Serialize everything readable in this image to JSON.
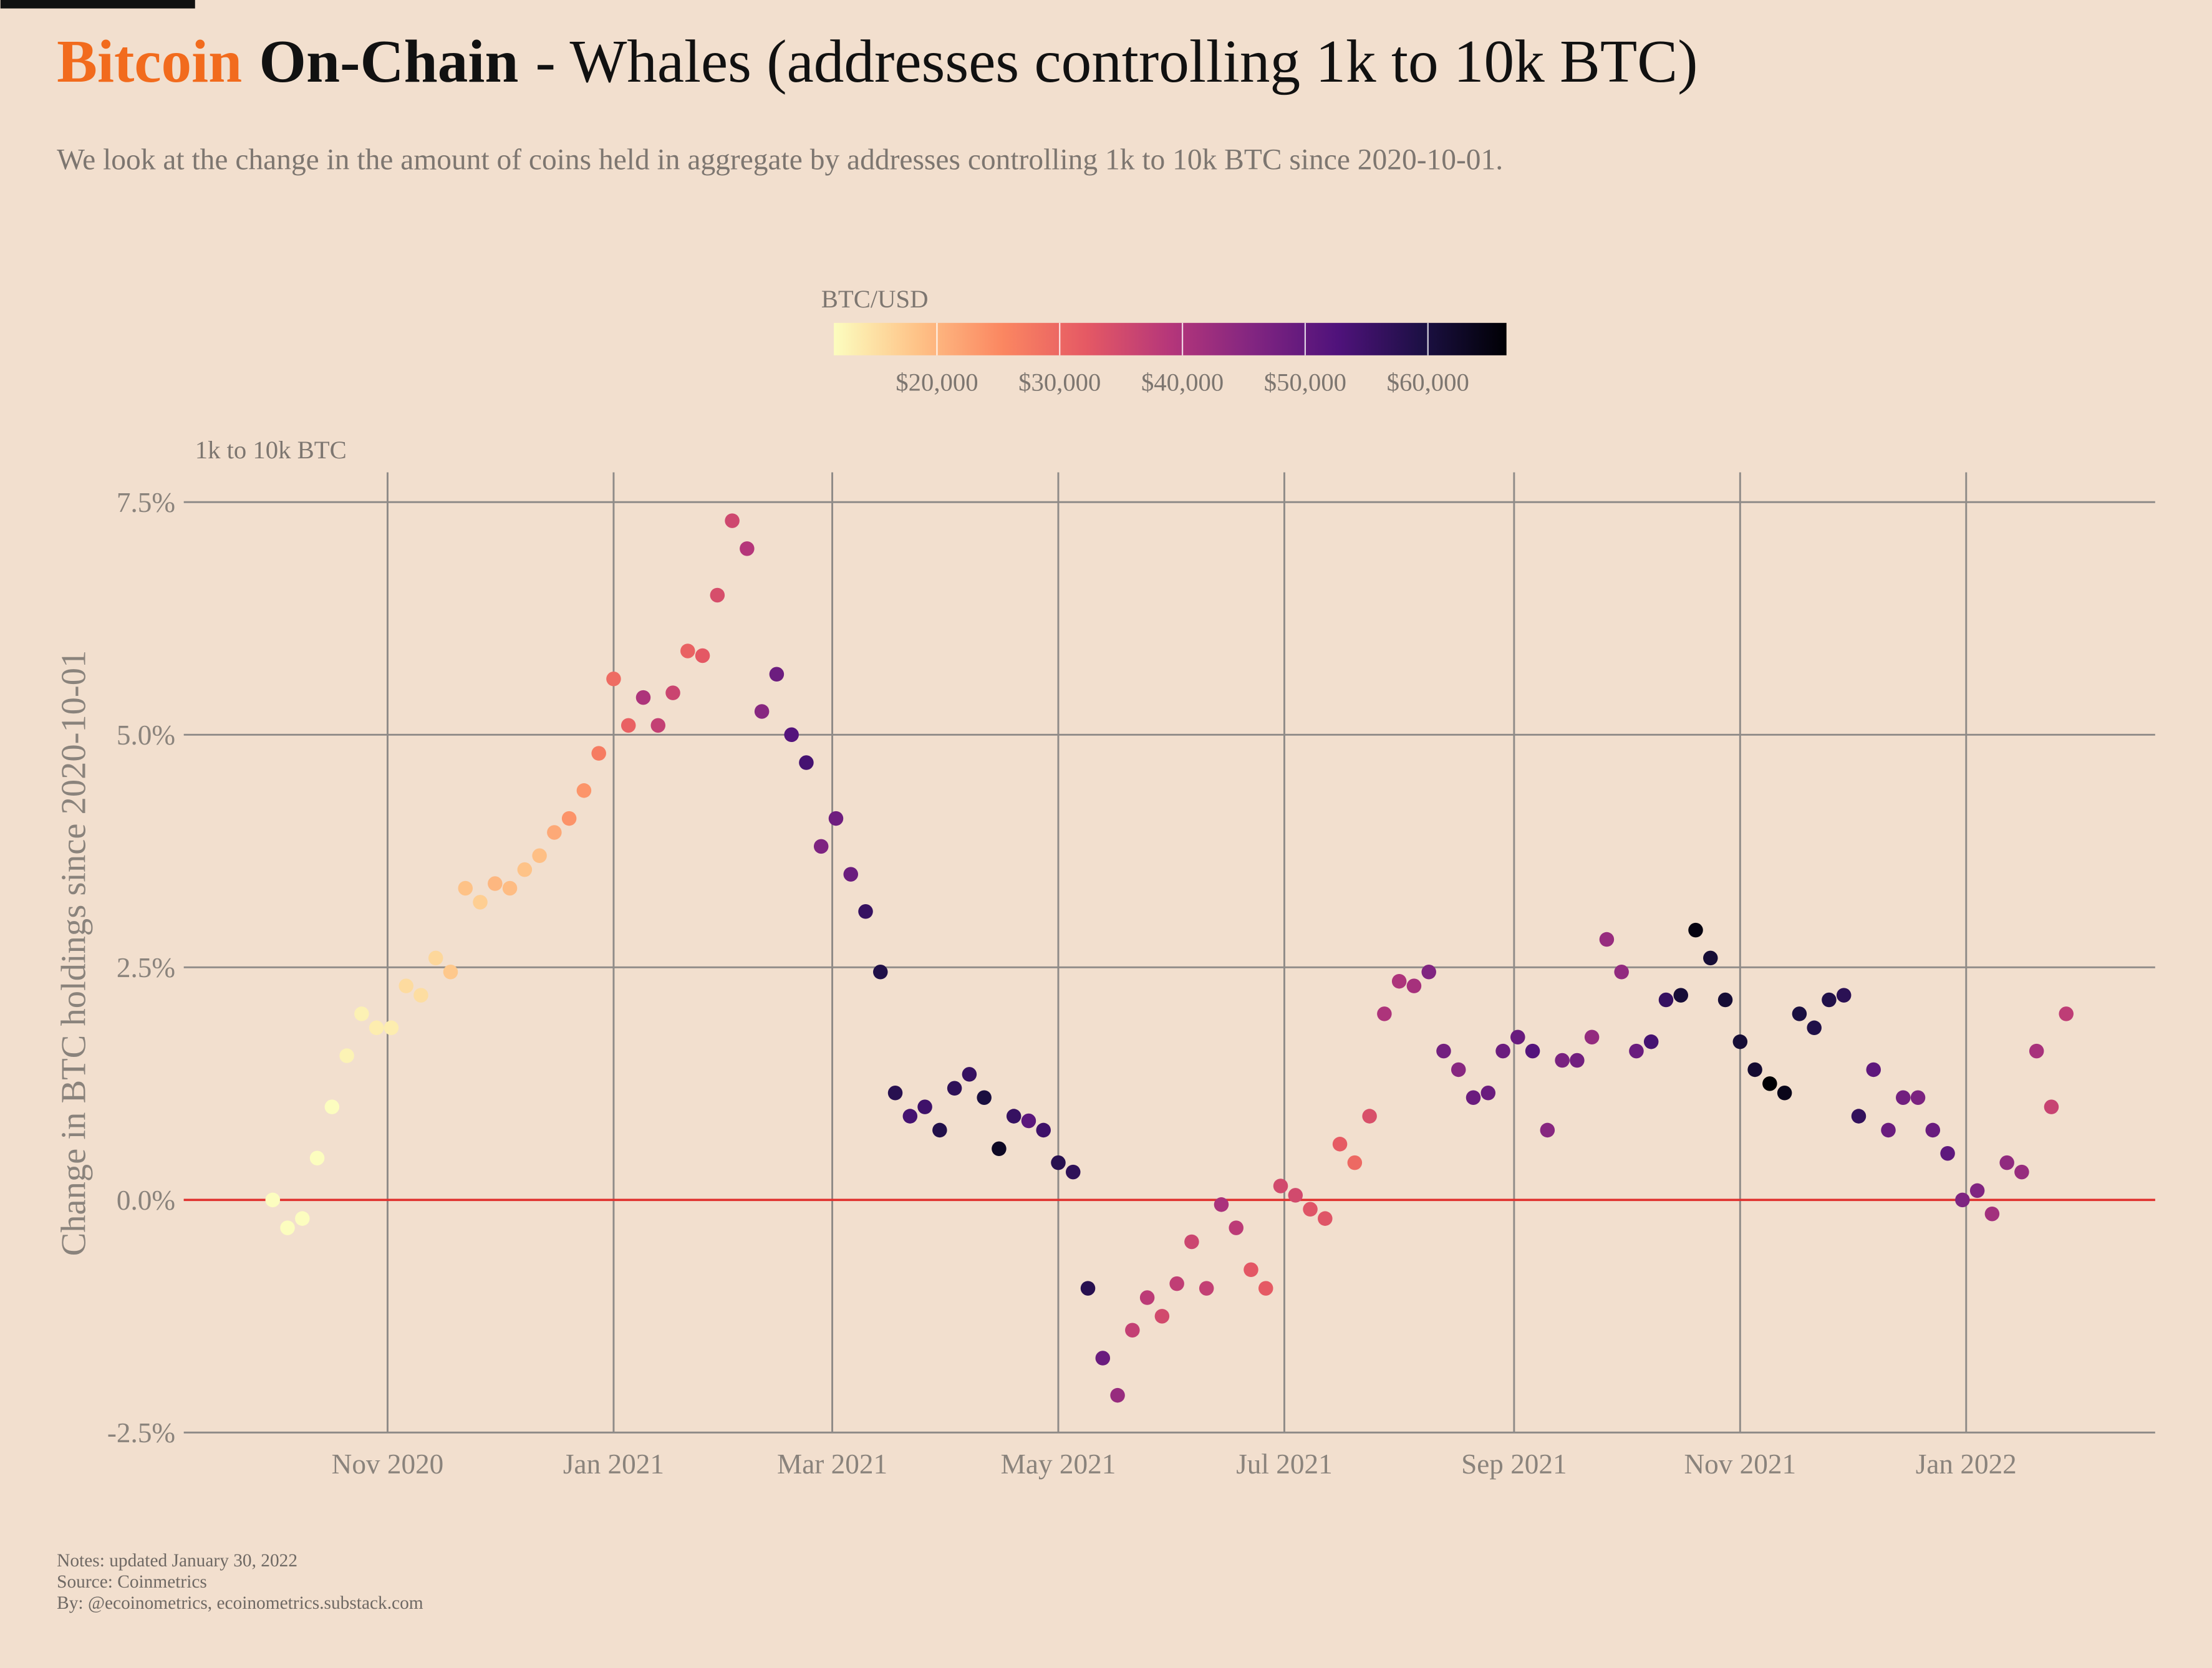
{
  "chart_data": {
    "type": "scatter",
    "title": {
      "brand": "Bitcoin",
      "section": "On-Chain",
      "text": "- Whales (addresses controlling 1k to 10k BTC)"
    },
    "subtitle": "We look at the change in the amount of coins held in aggregate by addresses controlling 1k to 10k BTC since 2020-10-01.",
    "y_unit_label": "1k to 10k BTC",
    "ylabel": "Change in BTC holdings since 2020-10-01",
    "notes": [
      "Notes: updated January 30, 2022",
      "Source: Coinmetrics",
      "By: @ecoinometrics, ecoinometrics.substack.com"
    ],
    "colorbar": {
      "title": "BTC/USD",
      "lim": [
        11600,
        66400
      ],
      "colormap": [
        "#fcfdbf",
        "#fec287",
        "#fb8761",
        "#e55964",
        "#b5367a",
        "#812581",
        "#4f127b",
        "#1c1044",
        "#000004"
      ],
      "ticks": [
        {
          "value": 20000,
          "label": "$20,000"
        },
        {
          "value": 30000,
          "label": "$30,000"
        },
        {
          "value": 40000,
          "label": "$40,000"
        },
        {
          "value": 50000,
          "label": "$50,000"
        },
        {
          "value": 60000,
          "label": "$60,000"
        }
      ]
    },
    "xlim": [
      "2020-09-07",
      "2022-02-21"
    ],
    "xticks": [
      {
        "value": "2020-11-01",
        "label": "Nov 2020"
      },
      {
        "value": "2021-01-01",
        "label": "Jan 2021"
      },
      {
        "value": "2021-03-01",
        "label": "Mar 2021"
      },
      {
        "value": "2021-05-01",
        "label": "May 2021"
      },
      {
        "value": "2021-07-01",
        "label": "Jul 2021"
      },
      {
        "value": "2021-09-01",
        "label": "Sep 2021"
      },
      {
        "value": "2021-11-01",
        "label": "Nov 2021"
      },
      {
        "value": "2022-01-01",
        "label": "Jan 2022"
      }
    ],
    "ylim": [
      -2.5,
      7.82
    ],
    "yticks": [
      {
        "value": -2.5,
        "label": "-2.5%"
      },
      {
        "value": 0,
        "label": "0.0%"
      },
      {
        "value": 2.5,
        "label": "2.5%"
      },
      {
        "value": 5,
        "label": "5.0%"
      },
      {
        "value": 7.5,
        "label": "7.5%"
      }
    ],
    "grid": true,
    "reference_line": {
      "value": 0,
      "color": "#e0312e"
    },
    "x": [
      "2020-10-01",
      "2020-10-05",
      "2020-10-09",
      "2020-10-13",
      "2020-10-17",
      "2020-10-21",
      "2020-10-25",
      "2020-10-29",
      "2020-11-02",
      "2020-11-06",
      "2020-11-10",
      "2020-11-14",
      "2020-11-18",
      "2020-11-22",
      "2020-11-26",
      "2020-11-30",
      "2020-12-04",
      "2020-12-08",
      "2020-12-12",
      "2020-12-16",
      "2020-12-20",
      "2020-12-24",
      "2020-12-28",
      "2021-01-01",
      "2021-01-05",
      "2021-01-09",
      "2021-01-13",
      "2021-01-17",
      "2021-01-21",
      "2021-01-25",
      "2021-01-29",
      "2021-02-02",
      "2021-02-06",
      "2021-02-10",
      "2021-02-14",
      "2021-02-18",
      "2021-02-22",
      "2021-02-26",
      "2021-03-02",
      "2021-03-06",
      "2021-03-10",
      "2021-03-14",
      "2021-03-18",
      "2021-03-22",
      "2021-03-26",
      "2021-03-30",
      "2021-04-03",
      "2021-04-07",
      "2021-04-11",
      "2021-04-15",
      "2021-04-19",
      "2021-04-23",
      "2021-04-27",
      "2021-05-01",
      "2021-05-05",
      "2021-05-09",
      "2021-05-13",
      "2021-05-17",
      "2021-05-21",
      "2021-05-25",
      "2021-05-29",
      "2021-06-02",
      "2021-06-06",
      "2021-06-10",
      "2021-06-14",
      "2021-06-18",
      "2021-06-22",
      "2021-06-26",
      "2021-06-30",
      "2021-07-04",
      "2021-07-08",
      "2021-07-12",
      "2021-07-16",
      "2021-07-20",
      "2021-07-24",
      "2021-07-28",
      "2021-08-01",
      "2021-08-05",
      "2021-08-09",
      "2021-08-13",
      "2021-08-17",
      "2021-08-21",
      "2021-08-25",
      "2021-08-29",
      "2021-09-02",
      "2021-09-06",
      "2021-09-10",
      "2021-09-14",
      "2021-09-18",
      "2021-09-22",
      "2021-09-26",
      "2021-09-30",
      "2021-10-04",
      "2021-10-08",
      "2021-10-12",
      "2021-10-16",
      "2021-10-20",
      "2021-10-24",
      "2021-10-28",
      "2021-11-01",
      "2021-11-05",
      "2021-11-09",
      "2021-11-13",
      "2021-11-17",
      "2021-11-21",
      "2021-11-25",
      "2021-11-29",
      "2021-12-03",
      "2021-12-07",
      "2021-12-11",
      "2021-12-15",
      "2021-12-19",
      "2021-12-23",
      "2021-12-27",
      "2021-12-31",
      "2022-01-04",
      "2022-01-08",
      "2022-01-12",
      "2022-01-16",
      "2022-01-20",
      "2022-01-24",
      "2022-01-28"
    ],
    "values": [
      0.0,
      -0.3,
      -0.2,
      0.45,
      1.0,
      1.55,
      2.0,
      1.85,
      1.85,
      2.3,
      2.2,
      2.6,
      2.45,
      3.35,
      3.2,
      3.4,
      3.35,
      3.55,
      3.7,
      3.95,
      4.1,
      4.4,
      4.8,
      5.6,
      5.1,
      5.4,
      5.1,
      5.45,
      5.9,
      5.85,
      6.5,
      7.3,
      7.0,
      5.25,
      5.65,
      5.0,
      4.7,
      3.8,
      4.1,
      3.5,
      3.1,
      2.45,
      1.15,
      0.9,
      1.0,
      0.75,
      1.2,
      1.35,
      1.1,
      0.55,
      0.9,
      0.85,
      0.75,
      0.4,
      0.3,
      -0.95,
      -1.7,
      -2.1,
      -1.4,
      -1.05,
      -1.25,
      -0.9,
      -0.45,
      -0.95,
      -0.05,
      -0.3,
      -0.75,
      -0.95,
      0.15,
      0.05,
      -0.1,
      -0.2,
      0.6,
      0.4,
      0.9,
      2.0,
      2.35,
      2.3,
      2.45,
      1.6,
      1.4,
      1.1,
      1.15,
      1.6,
      1.75,
      1.6,
      0.75,
      1.5,
      1.5,
      1.75,
      2.8,
      2.45,
      1.6,
      1.7,
      2.15,
      2.2,
      2.9,
      2.6,
      2.15,
      1.7,
      1.4,
      1.25,
      1.15,
      2.0,
      1.85,
      2.15,
      2.2,
      0.9,
      1.4,
      0.75,
      1.1,
      1.1,
      0.75,
      0.5,
      0.0,
      0.1,
      -0.15,
      0.4,
      0.3,
      1.6,
      1.0,
      2.0
    ],
    "color_values": [
      10600,
      10700,
      11000,
      11400,
      11350,
      12800,
      13000,
      13500,
      13500,
      15500,
      15300,
      16000,
      17800,
      18400,
      17100,
      19700,
      19200,
      18300,
      18800,
      21300,
      23900,
      23700,
      27000,
      29300,
      31000,
      40000,
      37000,
      36000,
      30800,
      32300,
      34300,
      35500,
      39000,
      45000,
      48700,
      52000,
      54000,
      46300,
      48400,
      48900,
      56000,
      59000,
      58000,
      54000,
      55000,
      58800,
      57000,
      56000,
      60000,
      63000,
      56000,
      51000,
      55000,
      58000,
      57000,
      58000,
      49000,
      43000,
      37000,
      38000,
      35000,
      37500,
      35800,
      37000,
      40500,
      38000,
      32500,
      32000,
      35000,
      35000,
      33000,
      33000,
      31800,
      29800,
      34000,
      40000,
      40000,
      41000,
      46000,
      47800,
      45000,
      49000,
      49000,
      48900,
      49300,
      52000,
      45000,
      47000,
      48000,
      43500,
      43000,
      43800,
      49000,
      54000,
      56000,
      60800,
      65000,
      61000,
      61000,
      61000,
      61500,
      67500,
      64000,
      60000,
      59000,
      58900,
      57500,
      56500,
      50500,
      49000,
      48000,
      46700,
      49000,
      50700,
      46300,
      46000,
      41500,
      43900,
      43000,
      40700,
      36500,
      37700
    ]
  }
}
